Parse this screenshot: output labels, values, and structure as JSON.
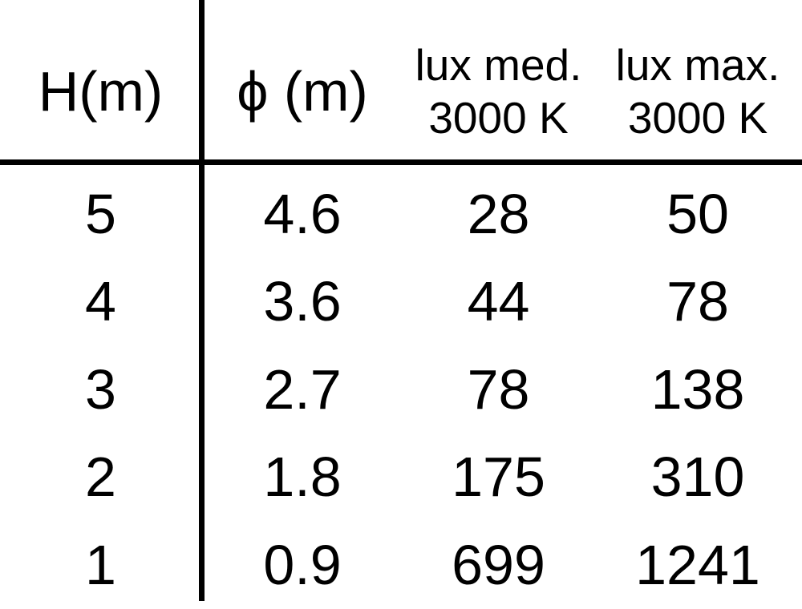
{
  "table": {
    "columns": [
      {
        "label": "H(m)",
        "sub": ""
      },
      {
        "label": "ϕ (m)",
        "sub": ""
      },
      {
        "label": "lux med.",
        "sub": "3000 K"
      },
      {
        "label": "lux max.",
        "sub": "3000 K"
      }
    ],
    "rows": [
      [
        "5",
        "4.6",
        "28",
        "50"
      ],
      [
        "4",
        "3.6",
        "44",
        "78"
      ],
      [
        "3",
        "2.7",
        "78",
        "138"
      ],
      [
        "2",
        "1.8",
        "175",
        "310"
      ],
      [
        "1",
        "0.9",
        "699",
        "1241"
      ]
    ]
  },
  "chart_data": {
    "type": "table",
    "columns": [
      "H(m)",
      "ϕ (m)",
      "lux med. 3000 K",
      "lux max. 3000 K"
    ],
    "rows": [
      [
        5,
        4.6,
        28,
        50
      ],
      [
        4,
        3.6,
        44,
        78
      ],
      [
        3,
        2.7,
        78,
        138
      ],
      [
        2,
        1.8,
        175,
        310
      ],
      [
        1,
        0.9,
        699,
        1241
      ]
    ]
  },
  "colors": {
    "text": "#000000",
    "background": "#ffffff",
    "rule": "#000000"
  }
}
